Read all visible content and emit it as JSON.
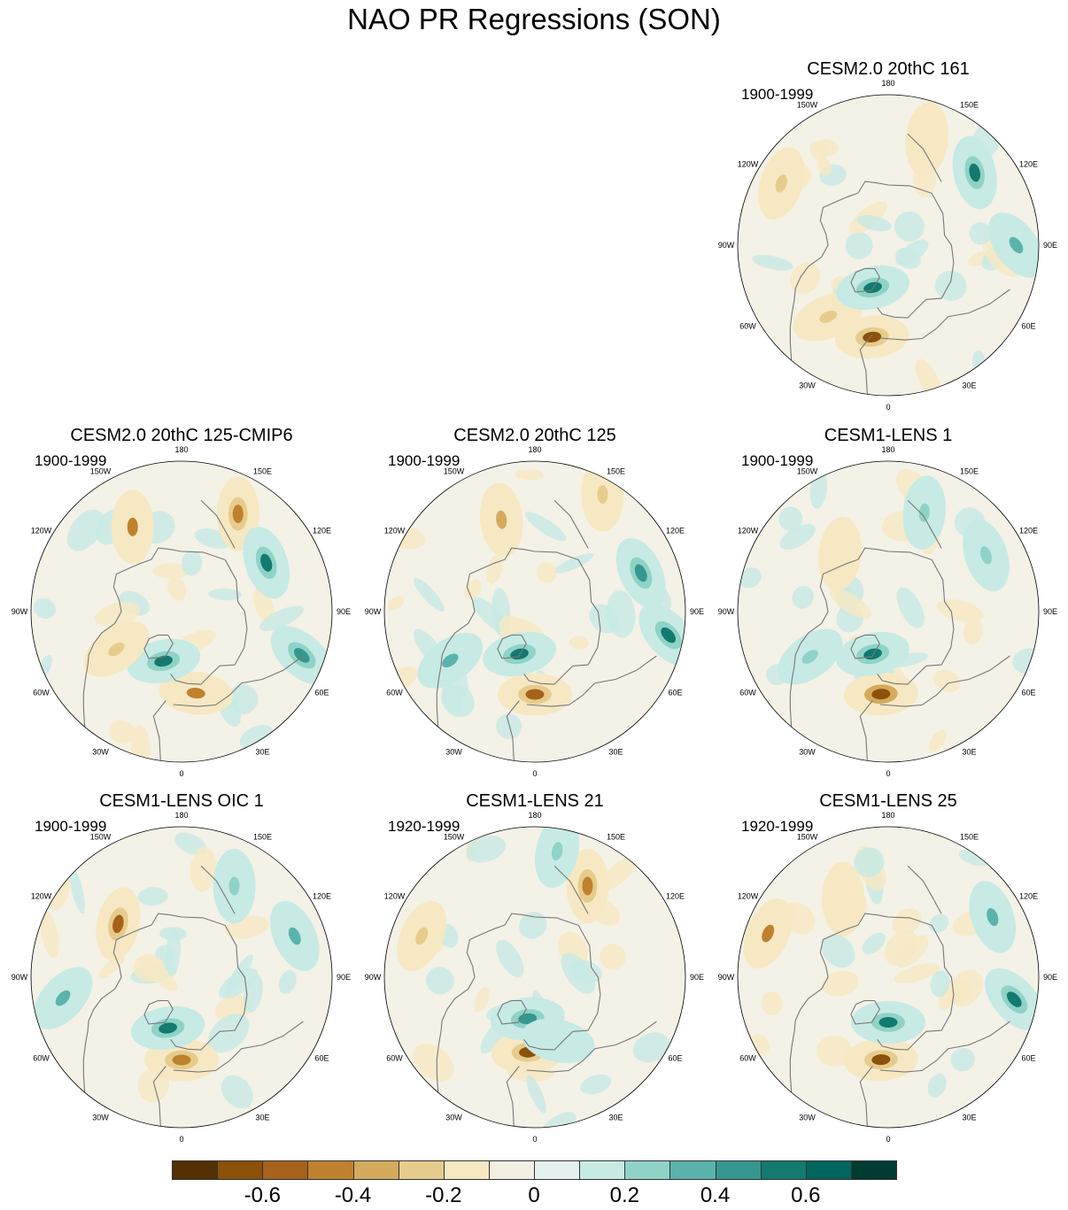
{
  "title": "NAO PR Regressions (SON)",
  "lon_labels": [
    "180",
    "150E",
    "120E",
    "90E",
    "60E",
    "30E",
    "0",
    "30W",
    "60W",
    "90W",
    "120W",
    "150W"
  ],
  "colors": {
    "scale": [
      "#543005",
      "#8c510a",
      "#a6611a",
      "#bf812d",
      "#d4aa5c",
      "#e6cc8c",
      "#f6e8c3",
      "#f3efe3",
      "#e4f1ef",
      "#c7eae5",
      "#8fd3c6",
      "#5ab4ac",
      "#35978f",
      "#127a6e",
      "#01665e",
      "#003c30"
    ],
    "land_line": "#777777",
    "base_fill": "#f4f1e6"
  },
  "chart_data": {
    "type": "heatmap",
    "projection": "north polar stereographic",
    "colorbar": {
      "levels": [
        -0.7,
        -0.6,
        -0.5,
        -0.4,
        -0.3,
        -0.2,
        -0.1,
        0,
        0.1,
        0.2,
        0.3,
        0.4,
        0.5,
        0.6,
        0.7
      ],
      "labels": [
        "-0.6",
        "-0.4",
        "-0.2",
        "0",
        "0.2",
        "0.4",
        "0.6"
      ],
      "label_values": [
        -0.6,
        -0.4,
        -0.2,
        0,
        0.2,
        0.4,
        0.6
      ]
    },
    "panels": [
      {
        "id": "p1",
        "title": "CESM2.0 20thC 161",
        "years": "1900-1999",
        "anomalies": [
          {
            "lon": -10,
            "colat": 0.62,
            "v": -0.6
          },
          {
            "lon": -40,
            "colat": 0.62,
            "v": -0.3
          },
          {
            "lon": -20,
            "colat": 0.3,
            "v": 0.5
          },
          {
            "lon": 130,
            "colat": 0.75,
            "v": 0.5
          },
          {
            "lon": -120,
            "colat": 0.82,
            "v": -0.3
          },
          {
            "lon": 160,
            "colat": 0.75,
            "v": -0.2
          },
          {
            "lon": 90,
            "colat": 0.85,
            "v": 0.35
          }
        ]
      },
      {
        "id": "p2",
        "title": "CESM2.0 20thC 125-CMIP6",
        "years": "1900-1999",
        "anomalies": [
          {
            "lon": 10,
            "colat": 0.55,
            "v": -0.4
          },
          {
            "lon": -20,
            "colat": 0.35,
            "v": 0.5
          },
          {
            "lon": -150,
            "colat": 0.65,
            "v": -0.4
          },
          {
            "lon": 150,
            "colat": 0.75,
            "v": -0.45
          },
          {
            "lon": 120,
            "colat": 0.65,
            "v": 0.55
          },
          {
            "lon": 70,
            "colat": 0.85,
            "v": 0.45
          },
          {
            "lon": -60,
            "colat": 0.5,
            "v": -0.3
          }
        ]
      },
      {
        "id": "p3",
        "title": "CESM2.0 20thC 125",
        "years": "1900-1999",
        "anomalies": [
          {
            "lon": 0,
            "colat": 0.55,
            "v": -0.5
          },
          {
            "lon": -20,
            "colat": 0.3,
            "v": 0.5
          },
          {
            "lon": -160,
            "colat": 0.65,
            "v": -0.35
          },
          {
            "lon": 110,
            "colat": 0.75,
            "v": 0.4
          },
          {
            "lon": 80,
            "colat": 0.9,
            "v": 0.55
          },
          {
            "lon": -60,
            "colat": 0.65,
            "v": 0.3
          },
          {
            "lon": 150,
            "colat": 0.9,
            "v": -0.3
          }
        ]
      },
      {
        "id": "p4",
        "title": "CESM1-LENS 1",
        "years": "1900-1999",
        "anomalies": [
          {
            "lon": -5,
            "colat": 0.55,
            "v": -0.65
          },
          {
            "lon": -20,
            "colat": 0.3,
            "v": 0.5
          },
          {
            "lon": -60,
            "colat": 0.6,
            "v": 0.25
          },
          {
            "lon": 160,
            "colat": 0.7,
            "v": 0.25
          },
          {
            "lon": 120,
            "colat": 0.75,
            "v": 0.2
          },
          {
            "lon": -140,
            "colat": 0.5,
            "v": -0.15
          }
        ]
      },
      {
        "id": "p5",
        "title": "CESM1-LENS OIC 1",
        "years": "1900-1999",
        "anomalies": [
          {
            "lon": 0,
            "colat": 0.55,
            "v": -0.45
          },
          {
            "lon": -15,
            "colat": 0.35,
            "v": 0.55
          },
          {
            "lon": -130,
            "colat": 0.55,
            "v": -0.5
          },
          {
            "lon": -80,
            "colat": 0.8,
            "v": 0.35
          },
          {
            "lon": 150,
            "colat": 0.7,
            "v": 0.25
          },
          {
            "lon": 110,
            "colat": 0.8,
            "v": 0.3
          }
        ]
      },
      {
        "id": "p6",
        "title": "CESM1-LENS 21",
        "years": "1920-1999",
        "anomalies": [
          {
            "lon": -5,
            "colat": 0.5,
            "v": -0.6
          },
          {
            "lon": -10,
            "colat": 0.28,
            "v": 0.45
          },
          {
            "lon": 150,
            "colat": 0.7,
            "v": -0.45
          },
          {
            "lon": -110,
            "colat": 0.8,
            "v": -0.25
          },
          {
            "lon": 170,
            "colat": 0.85,
            "v": 0.25
          },
          {
            "lon": 20,
            "colat": 0.45,
            "v": 0.15
          }
        ]
      },
      {
        "id": "p7",
        "title": "CESM1-LENS 25",
        "years": "1920-1999",
        "anomalies": [
          {
            "lon": -5,
            "colat": 0.55,
            "v": -0.6
          },
          {
            "lon": 0,
            "colat": 0.3,
            "v": 0.55
          },
          {
            "lon": 80,
            "colat": 0.85,
            "v": 0.5
          },
          {
            "lon": -110,
            "colat": 0.85,
            "v": -0.4
          },
          {
            "lon": 120,
            "colat": 0.8,
            "v": 0.35
          },
          {
            "lon": -150,
            "colat": 0.6,
            "v": -0.2
          }
        ]
      }
    ]
  }
}
